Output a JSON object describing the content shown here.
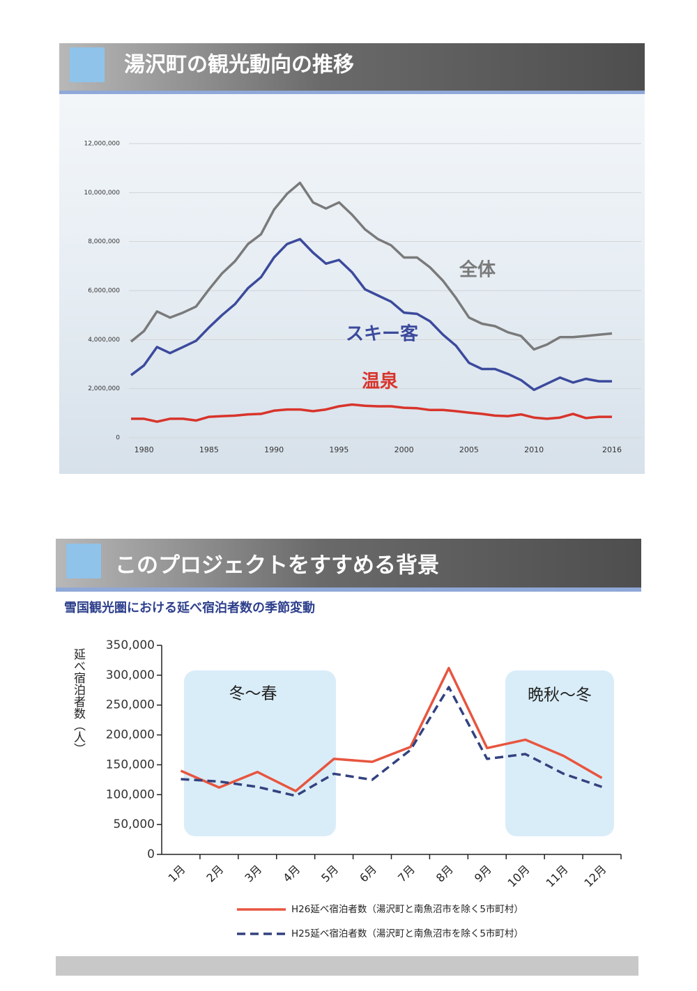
{
  "chart_data": [
    {
      "type": "line",
      "title": "湯沢町の観光動向の推移",
      "x": [
        1979,
        1980,
        1981,
        1982,
        1983,
        1984,
        1985,
        1986,
        1987,
        1988,
        1989,
        1990,
        1991,
        1992,
        1993,
        1994,
        1995,
        1996,
        1997,
        1998,
        1999,
        2000,
        2001,
        2002,
        2003,
        2004,
        2005,
        2006,
        2007,
        2008,
        2009,
        2010,
        2011,
        2012,
        2013,
        2014,
        2015,
        2016
      ],
      "xlim": [
        1979,
        2016
      ],
      "xticks": [
        1980,
        1985,
        1990,
        1995,
        2000,
        2005,
        2010,
        2016
      ],
      "ylim": [
        0,
        12000000
      ],
      "yticks": [
        0,
        {
          "value": 2000000,
          "label": "2,000,000"
        },
        {
          "value": 4000000,
          "label": "4,000,000"
        },
        {
          "value": 6000000,
          "label": "6,000,000"
        },
        {
          "value": 8000000,
          "label": "8,000,000"
        },
        {
          "value": 10000000,
          "label": "10,000,000"
        },
        {
          "value": 12000000,
          "label": "12,000,000"
        }
      ],
      "grid": true,
      "series": [
        {
          "name": "全体",
          "color": "#7a7a7a",
          "values": [
            3920000,
            4350000,
            5150000,
            4900000,
            5100000,
            5350000,
            6050000,
            6700000,
            7200000,
            7900000,
            8300000,
            9300000,
            9950000,
            10400000,
            9600000,
            9350000,
            9600000,
            9100000,
            8500000,
            8100000,
            7850000,
            7350000,
            7350000,
            6950000,
            6400000,
            5700000,
            4900000,
            4650000,
            4550000,
            4300000,
            4150000,
            3600000,
            3800000,
            4100000,
            4100000,
            4150000,
            4200000,
            4250000
          ]
        },
        {
          "name": "スキー客",
          "color": "#3b4a9c",
          "values": [
            2550000,
            2950000,
            3700000,
            3450000,
            3700000,
            3950000,
            4500000,
            5000000,
            5450000,
            6100000,
            6550000,
            7350000,
            7900000,
            8100000,
            7550000,
            7100000,
            7250000,
            6750000,
            6050000,
            5800000,
            5550000,
            5100000,
            5050000,
            4750000,
            4200000,
            3750000,
            3050000,
            2800000,
            2800000,
            2600000,
            2350000,
            1950000,
            2200000,
            2450000,
            2250000,
            2400000,
            2300000,
            2300000
          ]
        },
        {
          "name": "温泉",
          "color": "#d8342b",
          "values": [
            770000,
            770000,
            650000,
            770000,
            770000,
            700000,
            850000,
            880000,
            900000,
            950000,
            970000,
            1100000,
            1150000,
            1150000,
            1080000,
            1150000,
            1280000,
            1350000,
            1300000,
            1280000,
            1280000,
            1220000,
            1200000,
            1130000,
            1130000,
            1080000,
            1020000,
            970000,
            900000,
            880000,
            950000,
            820000,
            770000,
            820000,
            970000,
            800000,
            850000,
            850000
          ]
        }
      ]
    },
    {
      "type": "line",
      "title": "このプロジェクトをすすめる背景",
      "subtitle": "雪国観光圏における延べ宿泊者数の季節変動",
      "ylabel": "延べ宿泊者数（人）",
      "categories": [
        "1月",
        "2月",
        "3月",
        "4月",
        "5月",
        "6月",
        "7月",
        "8月",
        "9月",
        "10月",
        "11月",
        "12月"
      ],
      "ylim": [
        0,
        350000
      ],
      "yticks": [
        0,
        {
          "value": 50000,
          "label": "50,000"
        },
        {
          "value": 100000,
          "label": "100,000"
        },
        {
          "value": 150000,
          "label": "150,000"
        },
        {
          "value": 200000,
          "label": "200,000"
        },
        {
          "value": 250000,
          "label": "250,000"
        },
        {
          "value": 300000,
          "label": "300,000"
        },
        {
          "value": 350000,
          "label": "350,000"
        }
      ],
      "grid": false,
      "annotations": [
        "冬～春",
        "晩秋～冬"
      ],
      "series": [
        {
          "name": "H26延べ宿泊者数（湯沢町と南魚沼市を除く5市町村）",
          "color": "#e8553f",
          "dashed": false,
          "values": [
            140000,
            112000,
            138000,
            106000,
            160000,
            155000,
            180000,
            312000,
            178000,
            192000,
            165000,
            128000
          ]
        },
        {
          "name": "H25延べ宿泊者数（湯沢町と南魚沼市を除く5市町村）",
          "color": "#33427f",
          "dashed": true,
          "values": [
            126000,
            122000,
            113000,
            98000,
            135000,
            125000,
            175000,
            280000,
            160000,
            168000,
            135000,
            113000
          ]
        }
      ]
    }
  ]
}
